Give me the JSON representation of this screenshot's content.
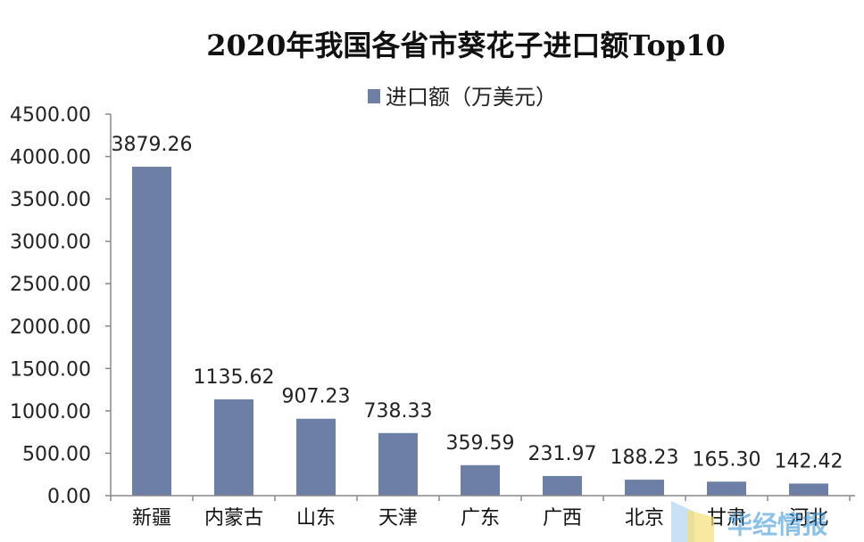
{
  "chart_data": {
    "type": "bar",
    "title": "2020年我国各省市葵花子进口额Top10",
    "xlabel": "",
    "ylabel": "",
    "legend": {
      "position": "top",
      "entries": [
        "进口额（万美元）"
      ]
    },
    "categories": [
      "新疆",
      "内蒙古",
      "山东",
      "天津",
      "广东",
      "广西",
      "北京",
      "甘肃",
      "河北"
    ],
    "series": [
      {
        "name": "进口额（万美元）",
        "values": [
          3879.26,
          1135.62,
          907.23,
          738.33,
          359.59,
          231.97,
          188.23,
          165.3,
          142.42
        ],
        "data_labels": [
          "3879.26",
          "1135.62",
          "907.23",
          "738.33",
          "359.59",
          "231.97",
          "188.23",
          "165.30",
          "142.42"
        ]
      }
    ],
    "ylim": [
      0,
      4500
    ],
    "yticks": [
      0,
      500,
      1000,
      1500,
      2000,
      2500,
      3000,
      3500,
      4000,
      4500
    ],
    "ytick_labels": [
      "0.00",
      "500.00",
      "1000.00",
      "1500.00",
      "2000.00",
      "2500.00",
      "3000.00",
      "3500.00",
      "4000.00",
      "4500.00"
    ],
    "grid": false,
    "bar_color": "#6e7fa6"
  },
  "watermark": {
    "text": "华经情报",
    "color": "#2a8fd8"
  }
}
